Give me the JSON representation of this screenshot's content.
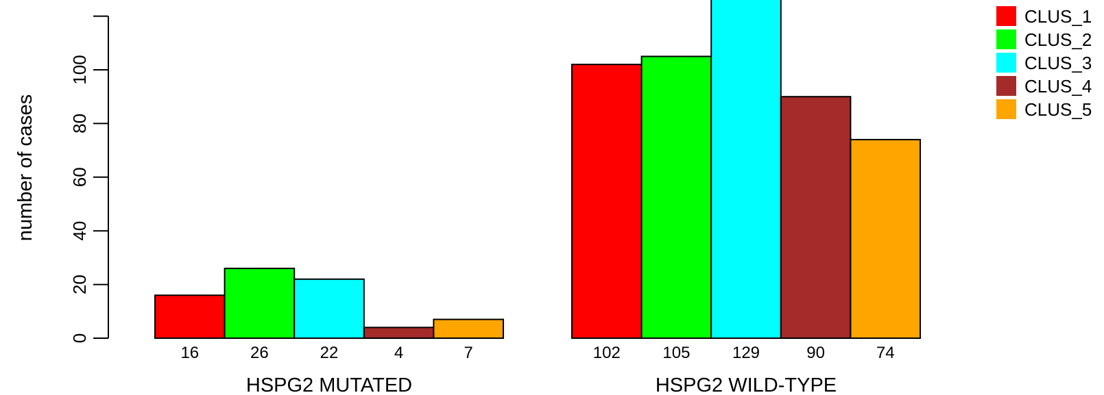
{
  "chart_data": {
    "type": "bar",
    "ylabel": "number of cases",
    "ylim": [
      0,
      120
    ],
    "yticks": [
      0,
      20,
      40,
      60,
      80,
      100
    ],
    "grid": false,
    "legend_position": "top-right",
    "groups": [
      "HSPG2 MUTATED",
      "HSPG2 WILD-TYPE"
    ],
    "series": [
      {
        "name": "CLUS_1",
        "color": "#ff0000",
        "values": [
          16,
          102
        ],
        "labels": [
          "16",
          "102"
        ]
      },
      {
        "name": "CLUS_2",
        "color": "#00ff00",
        "values": [
          26,
          105
        ],
        "labels": [
          "26",
          "105"
        ]
      },
      {
        "name": "CLUS_3",
        "color": "#00ffff",
        "values": [
          22,
          129
        ],
        "labels": [
          "22",
          "129"
        ]
      },
      {
        "name": "CLUS_4",
        "color": "#a52a2a",
        "values": [
          4,
          90
        ],
        "labels": [
          "4",
          "90"
        ]
      },
      {
        "name": "CLUS_5",
        "color": "#ffa500",
        "values": [
          7,
          74
        ],
        "labels": [
          "7",
          "74"
        ]
      }
    ]
  }
}
